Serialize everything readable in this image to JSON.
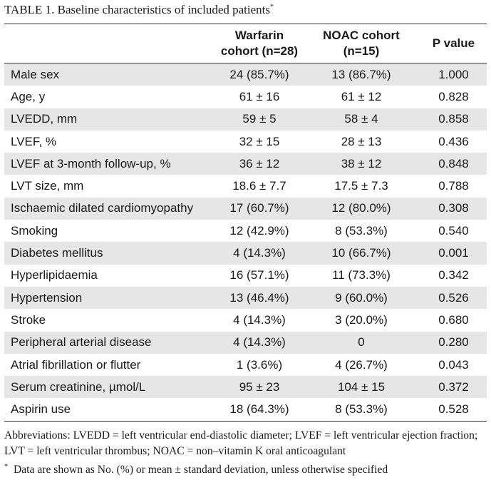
{
  "title": {
    "text": "TABLE 1.  Baseline characteristics of included patients",
    "marker": "*"
  },
  "table": {
    "headers": {
      "characteristic": "",
      "warfarin_line1": "Warfarin",
      "warfarin_line2": "cohort (n=28)",
      "noac_line1": "NOAC cohort",
      "noac_line2": "(n=15)",
      "pvalue": "P value"
    },
    "rows": [
      {
        "label": "Male sex",
        "warfarin": "24 (85.7%)",
        "noac": "13 (86.7%)",
        "p": "1.000"
      },
      {
        "label": "Age, y",
        "warfarin": "61 ± 16",
        "noac": "61 ± 12",
        "p": "0.828"
      },
      {
        "label": "LVEDD, mm",
        "warfarin": "59 ± 5",
        "noac": "58 ± 4",
        "p": "0.858"
      },
      {
        "label": "LVEF, %",
        "warfarin": "32 ± 15",
        "noac": "28 ± 13",
        "p": "0.436"
      },
      {
        "label": "LVEF at 3-month follow-up, %",
        "warfarin": "36 ± 12",
        "noac": "38 ± 12",
        "p": "0.848"
      },
      {
        "label": "LVT size, mm",
        "warfarin": "18.6 ± 7.7",
        "noac": "17.5 ± 7.3",
        "p": "0.788"
      },
      {
        "label": "Ischaemic dilated cardiomyopathy",
        "warfarin": "17 (60.7%)",
        "noac": "12 (80.0%)",
        "p": "0.308"
      },
      {
        "label": "Smoking",
        "warfarin": "12 (42.9%)",
        "noac": "8 (53.3%)",
        "p": "0.540"
      },
      {
        "label": "Diabetes mellitus",
        "warfarin": "4 (14.3%)",
        "noac": "10 (66.7%)",
        "p": "0.001"
      },
      {
        "label": "Hyperlipidaemia",
        "warfarin": "16 (57.1%)",
        "noac": "11 (73.3%)",
        "p": "0.342"
      },
      {
        "label": "Hypertension",
        "warfarin": "13 (46.4%)",
        "noac": "9 (60.0%)",
        "p": "0.526"
      },
      {
        "label": "Stroke",
        "warfarin": "4 (14.3%)",
        "noac": "3 (20.0%)",
        "p": "0.680"
      },
      {
        "label": "Peripheral arterial disease",
        "warfarin": "4 (14.3%)",
        "noac": "0",
        "p": "0.280"
      },
      {
        "label": "Atrial fibrillation or flutter",
        "warfarin": "1 (3.6%)",
        "noac": "4 (26.7%)",
        "p": "0.043"
      },
      {
        "label": "Serum creatinine, µmol/L",
        "warfarin": "95 ± 23",
        "noac": "104 ± 15",
        "p": "0.372"
      },
      {
        "label": "Aspirin use",
        "warfarin": "18 (64.3%)",
        "noac": "8 (53.3%)",
        "p": "0.528"
      }
    ]
  },
  "notes": {
    "abbreviations": "Abbreviations: LVEDD = left ventricular end-diastolic diameter; LVEF = left ventricular ejection fraction; LVT = left ventricular thrombus; NOAC = non–vitamin K oral anticoagulant",
    "footnote_marker": "*",
    "footnote": "Data are shown as No. (%) or mean ± standard deviation, unless otherwise specified"
  }
}
